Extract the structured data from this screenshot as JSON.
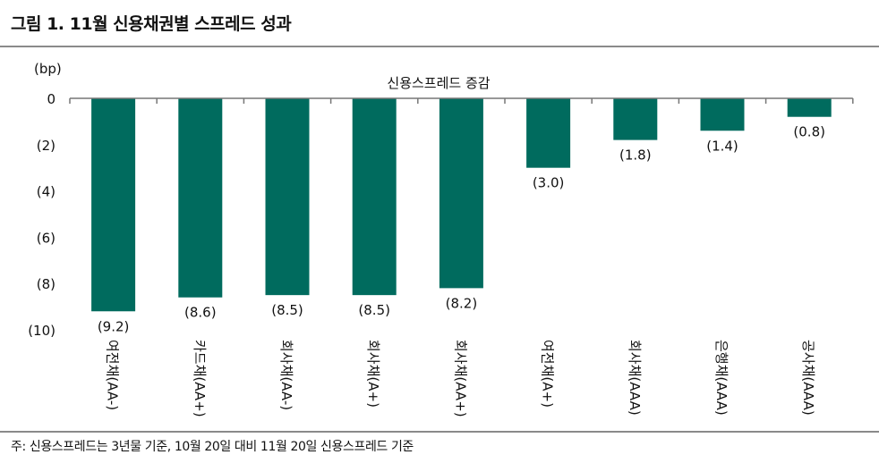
{
  "title": "그림 1. 11월 신용채권별 스프레드 성과",
  "note": "주: 신용스프레드는 3년물 기준, 10월 20일 대비 11월 20일 신용스프레드 기준",
  "chart_data": {
    "type": "bar",
    "title": "신용스프레드 증감",
    "ylabel": "(bp)",
    "ylim": [
      -10,
      0
    ],
    "yticks": [
      0,
      -2,
      -4,
      -6,
      -8,
      -10
    ],
    "ytick_labels": [
      "0",
      "(2)",
      "(4)",
      "(6)",
      "(8)",
      "(10)"
    ],
    "categories": [
      "여전채(AA-)",
      "카드채(AA+)",
      "회사채(AA-)",
      "회사채(A+)",
      "회사채(AA+)",
      "여전채(A+)",
      "회사채(AAA)",
      "은행채(AAA)",
      "공사채(AAA)"
    ],
    "values": [
      -9.2,
      -8.6,
      -8.5,
      -8.5,
      -8.2,
      -3.0,
      -1.8,
      -1.4,
      -0.8
    ],
    "data_labels": [
      "(9.2)",
      "(8.6)",
      "(8.5)",
      "(8.5)",
      "(8.2)",
      "(3.0)",
      "(1.8)",
      "(1.4)",
      "(0.8)"
    ],
    "grid": false,
    "bar_color": "#006B5E"
  }
}
